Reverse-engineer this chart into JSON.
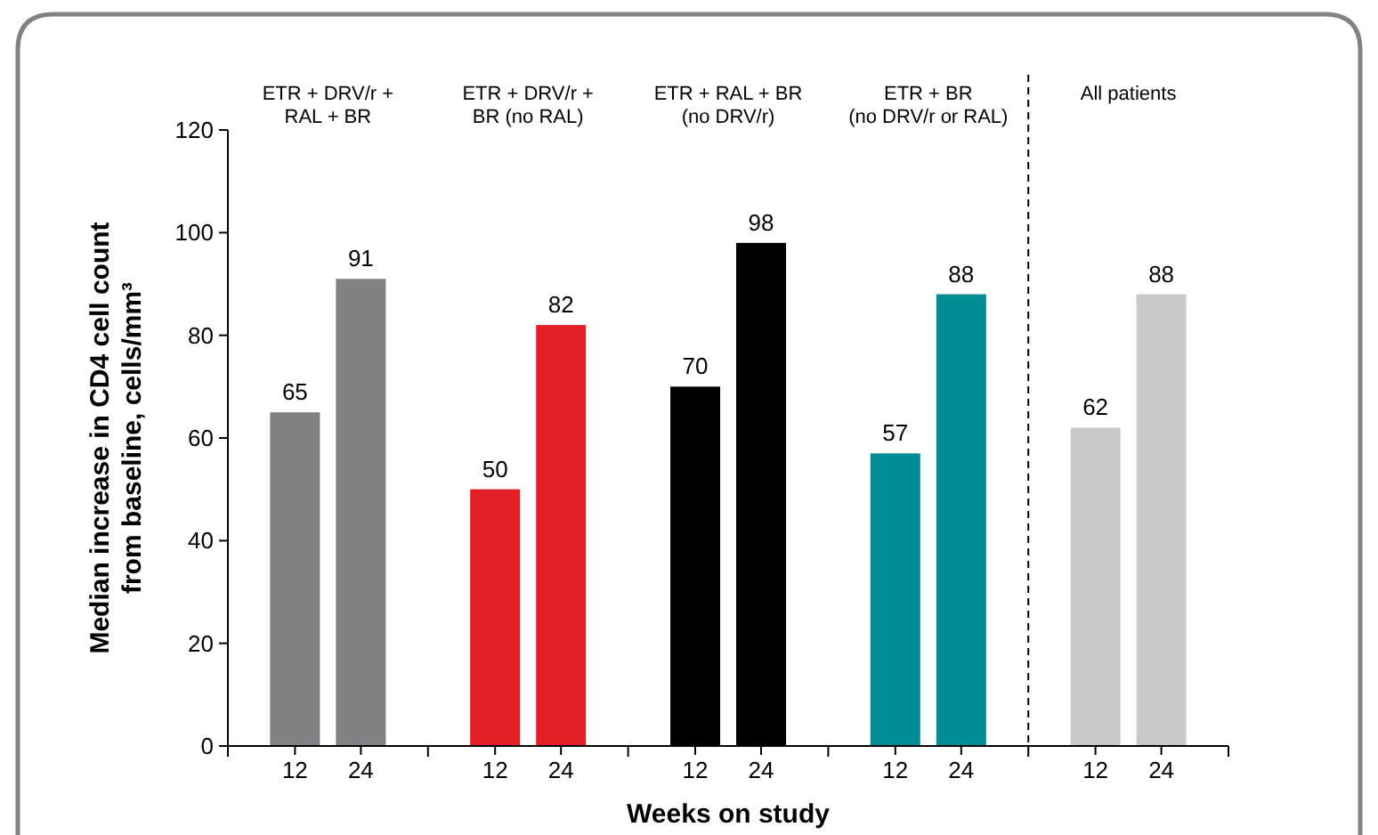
{
  "chart_data": {
    "type": "bar",
    "xlabel": "Weeks on study",
    "ylabel": "Median increase in CD4 cell count\nfrom baseline, cells/mm³",
    "categories": [
      "12",
      "24",
      "12",
      "24",
      "12",
      "24",
      "12",
      "24",
      "12",
      "24"
    ],
    "values": [
      65,
      91,
      50,
      82,
      70,
      98,
      57,
      88,
      62,
      88
    ],
    "colors": [
      "#808285",
      "#808285",
      "#e31e24",
      "#e31e24",
      "#000000",
      "#000000",
      "#008c95",
      "#008c95",
      "#c8c9cb",
      "#c8c9cb"
    ],
    "ylim": [
      0,
      120
    ],
    "yticks": [
      0,
      20,
      40,
      60,
      80,
      100,
      120
    ],
    "data_labels": true,
    "grid": false,
    "annotations": [
      "ETR + DRV/r +\nRAL + BR",
      "ETR + DRV/r +\nBR (no RAL)",
      "ETR + RAL + BR\n(no DRV/r)",
      "ETR + BR\n(no DRV/r or RAL)",
      "All patients"
    ]
  }
}
